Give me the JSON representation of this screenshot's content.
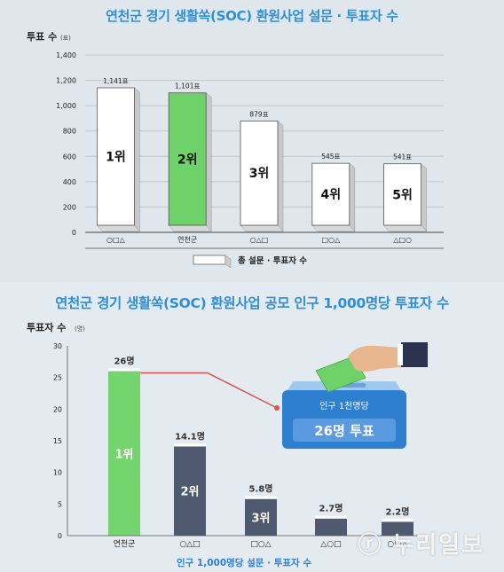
{
  "chart_data": [
    {
      "type": "bar",
      "title": "연천군 경기 생활쏙(SOC) 환원사업 설문 · 투표자  수",
      "ylabel": "투표 수",
      "yunit": "(표)",
      "ylim": [
        0,
        1400
      ],
      "yticks": [
        "0",
        "200",
        "400",
        "600",
        "800",
        "1,000",
        "1,200",
        "1,400"
      ],
      "categories": [
        "○□△",
        "연천군",
        "○△□",
        "□○△",
        "△□○"
      ],
      "values": [
        1141,
        1101,
        879,
        545,
        541
      ],
      "value_labels": [
        "1,141표",
        "1,101표",
        "879표",
        "545표",
        "541표"
      ],
      "rank_labels": [
        "1위",
        "2위",
        "3위",
        "4위",
        "5위"
      ],
      "legend": "총 설문 · 투표자 수",
      "colors": {
        "bar": "#ffffff",
        "highlight": "#6fd16a",
        "side": "#c8c8c8",
        "rank": "#111111"
      }
    },
    {
      "type": "bar",
      "title": "연천군 경기 생활쏙(SOC) 환원사업 공모 인구 1,000명당 투표자 수",
      "ylabel": "투표자 수",
      "yunit": "(명)",
      "ylim": [
        0,
        30
      ],
      "yticks": [
        "0",
        "5",
        "10",
        "15",
        "20",
        "25",
        "30"
      ],
      "categories": [
        "연천군",
        "○△□",
        "□○△",
        "△○□",
        "○□△"
      ],
      "values": [
        26,
        14.1,
        5.8,
        2.7,
        2.2
      ],
      "value_labels": [
        "26명",
        "14.1명",
        "5.8명",
        "2.7명",
        "2.2명"
      ],
      "rank_labels": [
        "1위",
        "2위",
        "3위",
        "",
        ""
      ],
      "xlabel": "인구 1,000명당 설문 · 투표자 수",
      "callout": {
        "ballot_label": "인구 1천명당",
        "ballot_value": "26명 투표"
      },
      "colors": {
        "highlight": "#74d56e",
        "bar": "#4f5a70",
        "callout": "#2f7fd0",
        "line": "#d9534f"
      }
    }
  ],
  "watermark": "ⓡ 누리일보"
}
